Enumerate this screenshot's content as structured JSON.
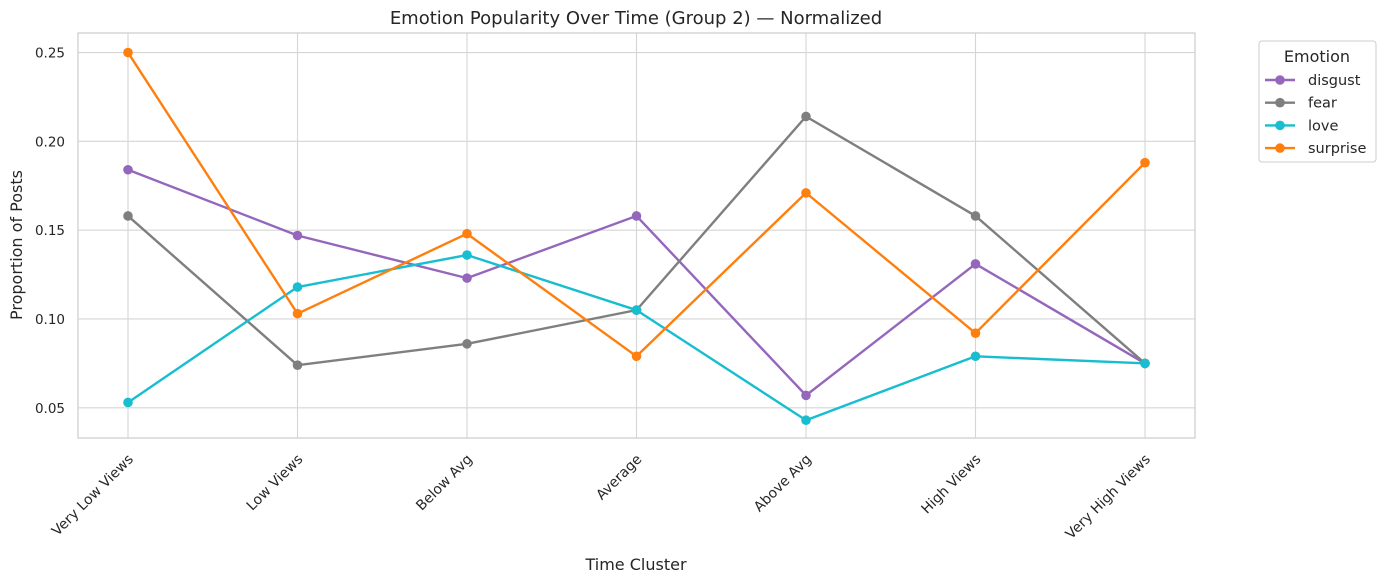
{
  "chart_data": {
    "type": "line",
    "title": "Emotion Popularity Over Time (Group 2) — Normalized",
    "xlabel": "Time Cluster",
    "ylabel": "Proportion of Posts",
    "categories": [
      "Very Low Views",
      "Low Views",
      "Below Avg",
      "Average",
      "Above Avg",
      "High Views",
      "Very High Views"
    ],
    "ylim": [
      0.033,
      0.261
    ],
    "yticks": [
      0.05,
      0.1,
      0.15,
      0.2,
      0.25
    ],
    "ytick_labels": [
      "0.05",
      "0.10",
      "0.15",
      "0.20",
      "0.25"
    ],
    "grid": true,
    "legend": {
      "title": "Emotion",
      "placement": "outside-top-right"
    },
    "series": [
      {
        "name": "disgust",
        "color": "#9467bd",
        "values": [
          0.184,
          0.147,
          0.123,
          0.158,
          0.057,
          0.131,
          0.075
        ]
      },
      {
        "name": "fear",
        "color": "#7f7f7f",
        "values": [
          0.158,
          0.074,
          0.086,
          0.105,
          0.214,
          0.158,
          0.075
        ]
      },
      {
        "name": "love",
        "color": "#17becf",
        "values": [
          0.053,
          0.118,
          0.136,
          0.105,
          0.043,
          0.079,
          0.075
        ]
      },
      {
        "name": "surprise",
        "color": "#ff7f0e",
        "values": [
          0.25,
          0.103,
          0.148,
          0.079,
          0.171,
          0.092,
          0.188
        ]
      }
    ]
  }
}
